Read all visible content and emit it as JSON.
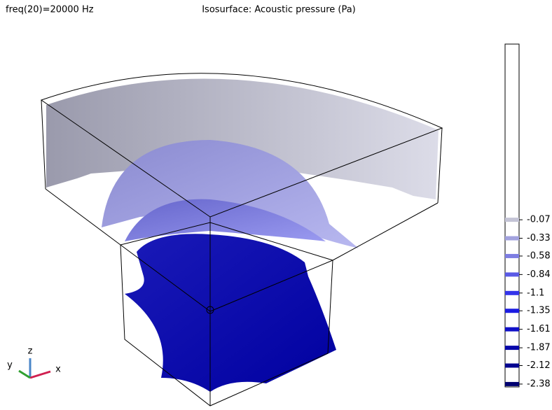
{
  "chart_data": {
    "type": "isosurface",
    "subtitle": "freq(20)=20000 Hz",
    "title": "Isosurface: Acoustic pressure (Pa)",
    "colorbar": {
      "range": [
        -2.42,
        2.4
      ],
      "levels": [
        {
          "value": -0.07,
          "color": "#c4c4d6"
        },
        {
          "value": -0.33,
          "color": "#a2a2de"
        },
        {
          "value": -0.58,
          "color": "#7e7ee2"
        },
        {
          "value": -0.84,
          "color": "#5a5ae6"
        },
        {
          "value": -1.1,
          "color": "#3434ea"
        },
        {
          "value": -1.35,
          "color": "#1c1ce2"
        },
        {
          "value": -1.61,
          "color": "#1010c8"
        },
        {
          "value": -1.87,
          "color": "#0808aa"
        },
        {
          "value": -2.12,
          "color": "#040490"
        },
        {
          "value": -2.38,
          "color": "#020270"
        }
      ]
    },
    "axes_triad": {
      "x": "x",
      "y": "y",
      "z": "z"
    }
  }
}
